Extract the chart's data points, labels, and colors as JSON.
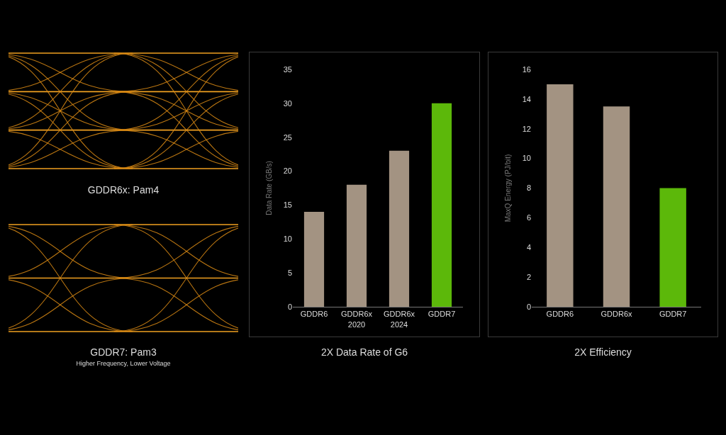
{
  "chart_data": [
    {
      "type": "other",
      "annotations": [
        "GDDR6x: Pam4",
        "GDDR7: Pam3",
        "Higher Frequency, Lower Voltage"
      ]
    },
    {
      "type": "bar",
      "title": "2X Data Rate of G6",
      "ylabel": "Data Rate (GB/s)",
      "categories": [
        "GDDR6",
        "GDDR6x\n2020",
        "GDDR6x\n2024",
        "GDDR7"
      ],
      "values": [
        14,
        18,
        23,
        30
      ],
      "colors": [
        "#a39382",
        "#a39382",
        "#a39382",
        "#5cb80a"
      ],
      "ylim": [
        0,
        35
      ],
      "yticks": [
        0,
        5,
        10,
        15,
        20,
        25,
        30,
        35
      ],
      "grid": false
    },
    {
      "type": "bar",
      "title": "2X Efficiency",
      "ylabel": "MaxQ Energy (PJ/bit)",
      "categories": [
        "GDDR6",
        "GDDR6x",
        "GDDR7"
      ],
      "values": [
        15,
        13.5,
        8
      ],
      "colors": [
        "#a39382",
        "#a39382",
        "#5cb80a"
      ],
      "ylim": [
        0,
        16
      ],
      "yticks": [
        0,
        2,
        4,
        6,
        8,
        10,
        12,
        14,
        16
      ],
      "grid": false
    }
  ]
}
